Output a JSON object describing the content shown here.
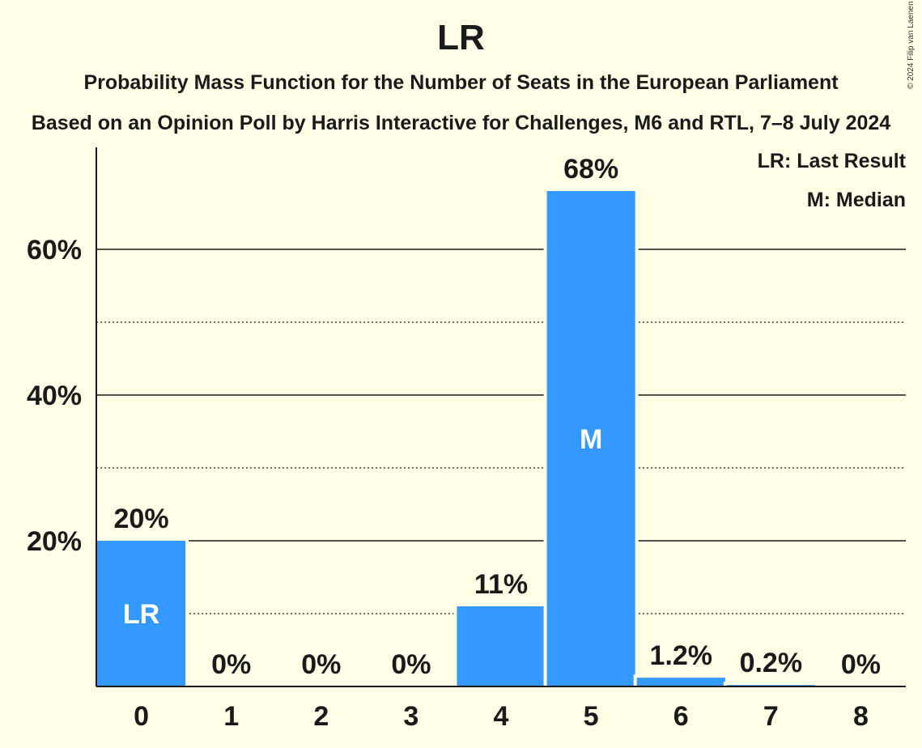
{
  "chart_data": {
    "type": "bar",
    "title": "LR",
    "subtitle": "Probability Mass Function for the Number of Seats in the European Parliament",
    "subtitle2": "Based on an Opinion Poll by Harris Interactive for Challenges, M6 and RTL, 7–8 July 2024",
    "categories": [
      "0",
      "1",
      "2",
      "3",
      "4",
      "5",
      "6",
      "7",
      "8"
    ],
    "values": [
      20,
      0,
      0,
      0,
      11,
      68,
      1.2,
      0.2,
      0
    ],
    "value_labels": [
      "20%",
      "0%",
      "0%",
      "0%",
      "11%",
      "68%",
      "1.2%",
      "0.2%",
      "0%"
    ],
    "bar_markers": [
      "LR",
      "",
      "",
      "",
      "",
      "M",
      "",
      "",
      ""
    ],
    "ylim": [
      0,
      74
    ],
    "yticks": [
      20,
      40,
      60
    ],
    "ytick_labels": [
      "20%",
      "40%",
      "60%"
    ],
    "minor_gridlines": [
      10,
      30,
      50
    ],
    "legend": [
      "LR: Last Result",
      "M: Median"
    ],
    "legend_position": "top-right",
    "bar_color": "#3399ff",
    "background": "#fffde6",
    "copyright": "© 2024 Filip van Laenen"
  }
}
